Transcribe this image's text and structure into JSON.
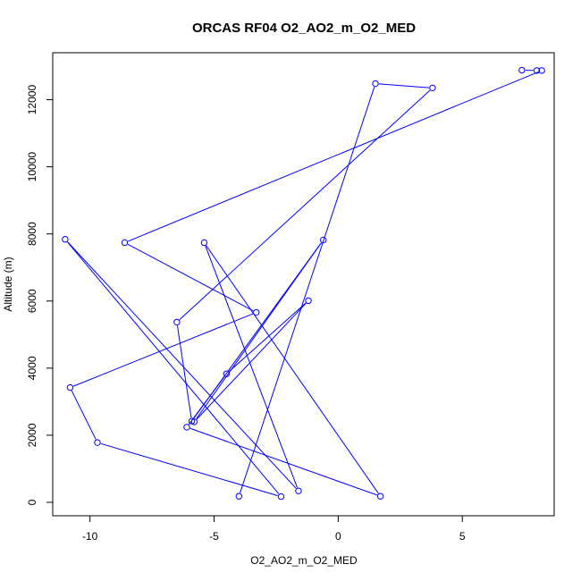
{
  "chart_data": {
    "type": "line",
    "title": "ORCAS RF04 O2_AO2_m_O2_MED",
    "xlabel": "O2_AO2_m_O2_MED",
    "ylabel": "Altitude (m)",
    "xlim": [
      -11.5,
      8.7
    ],
    "ylim": [
      -400,
      13400
    ],
    "xticks": [
      -10,
      -5,
      0,
      5
    ],
    "yticks": [
      0,
      2000,
      4000,
      6000,
      8000,
      10000,
      12000
    ],
    "series_color": "#0000ff",
    "series": [
      {
        "points": [
          [
            -4.0,
            180
          ],
          [
            1.5,
            12480
          ],
          [
            3.8,
            12350
          ],
          [
            -6.5,
            5370
          ],
          [
            -5.9,
            2420
          ],
          [
            -0.6,
            7820
          ],
          [
            -5.8,
            2400
          ],
          [
            -1.2,
            6010
          ],
          [
            -4.5,
            3830
          ],
          [
            -6.1,
            2240
          ],
          [
            1.7,
            180
          ],
          [
            -5.4,
            7740
          ],
          [
            -1.6,
            340
          ],
          [
            -11.0,
            7840
          ],
          [
            -2.3,
            170
          ],
          [
            -9.7,
            1780
          ],
          [
            -10.8,
            3420
          ],
          [
            -3.3,
            5660
          ],
          [
            -8.6,
            7740
          ],
          [
            8.2,
            12870
          ],
          [
            8.0,
            12870
          ],
          [
            7.4,
            12880
          ]
        ]
      }
    ]
  }
}
